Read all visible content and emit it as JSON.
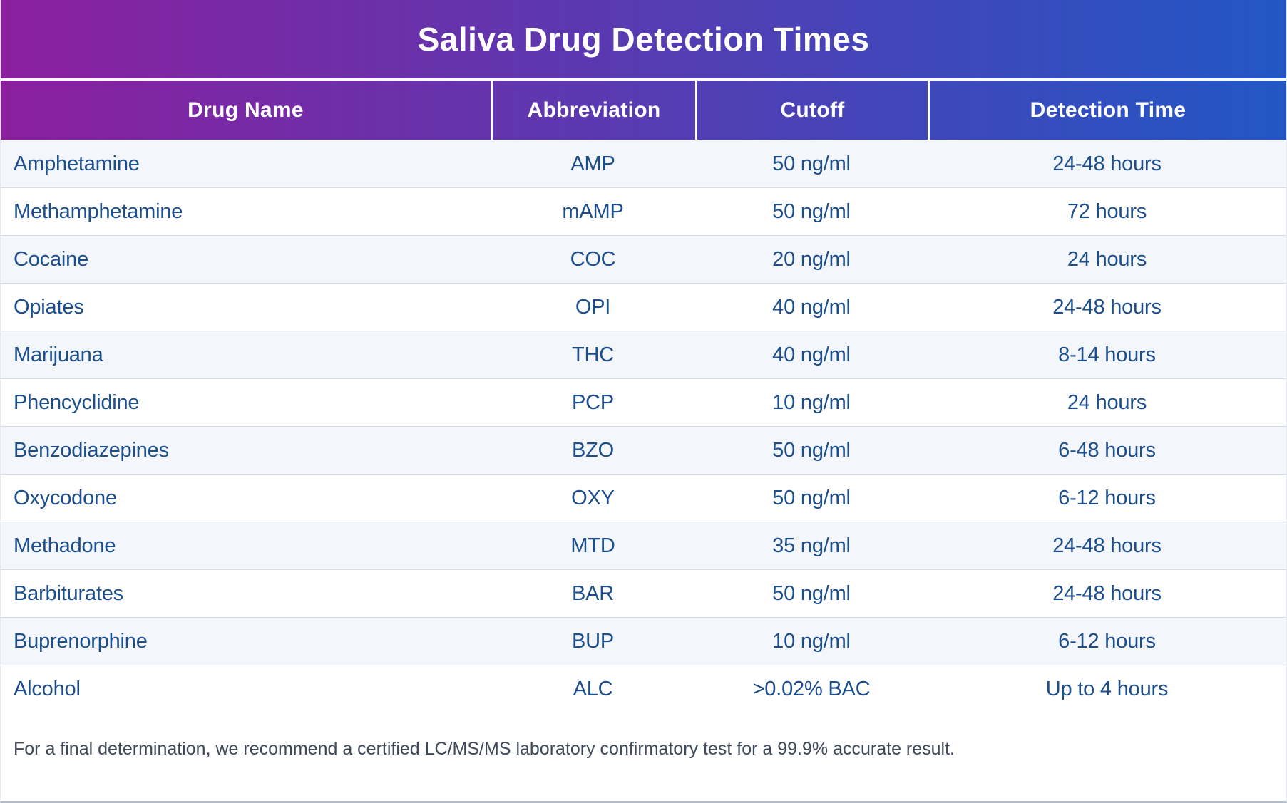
{
  "title": "Saliva Drug Detection Times",
  "colors": {
    "gradient_start": "#8b1f9e",
    "gradient_end": "#2257c5",
    "row_alt_background": "#f3f6fa",
    "row_white_background": "#ffffff",
    "row_divider": "#d5dae2",
    "cell_text": "#1c4e8c",
    "footer_text": "#3e4959",
    "bottom_border": "#b3bcc8"
  },
  "table": {
    "columns": [
      "Drug Name",
      "Abbreviation",
      "Cutoff",
      "Detection Time"
    ],
    "rows": [
      {
        "drug": "Amphetamine",
        "abbr": "AMP",
        "cutoff": "50 ng/ml",
        "detection": "24-48 hours"
      },
      {
        "drug": "Methamphetamine",
        "abbr": "mAMP",
        "cutoff": "50 ng/ml",
        "detection": "72 hours"
      },
      {
        "drug": "Cocaine",
        "abbr": "COC",
        "cutoff": "20 ng/ml",
        "detection": "24 hours"
      },
      {
        "drug": "Opiates",
        "abbr": "OPI",
        "cutoff": "40 ng/ml",
        "detection": "24-48 hours"
      },
      {
        "drug": "Marijuana",
        "abbr": "THC",
        "cutoff": "40 ng/ml",
        "detection": "8-14 hours"
      },
      {
        "drug": "Phencyclidine",
        "abbr": "PCP",
        "cutoff": "10 ng/ml",
        "detection": "24 hours"
      },
      {
        "drug": "Benzodiazepines",
        "abbr": "BZO",
        "cutoff": "50 ng/ml",
        "detection": "6-48 hours"
      },
      {
        "drug": "Oxycodone",
        "abbr": "OXY",
        "cutoff": "50 ng/ml",
        "detection": "6-12 hours"
      },
      {
        "drug": "Methadone",
        "abbr": "MTD",
        "cutoff": "35 ng/ml",
        "detection": "24-48 hours"
      },
      {
        "drug": "Barbiturates",
        "abbr": "BAR",
        "cutoff": "50 ng/ml",
        "detection": "24-48 hours"
      },
      {
        "drug": "Buprenorphine",
        "abbr": "BUP",
        "cutoff": "10 ng/ml",
        "detection": "6-12 hours"
      },
      {
        "drug": "Alcohol",
        "abbr": "ALC",
        "cutoff": ">0.02% BAC",
        "detection": "Up to 4 hours"
      }
    ]
  },
  "footer": {
    "note": "For a final determination, we recommend a certified LC/MS/MS laboratory confirmatory test for a 99.9% accurate result."
  }
}
